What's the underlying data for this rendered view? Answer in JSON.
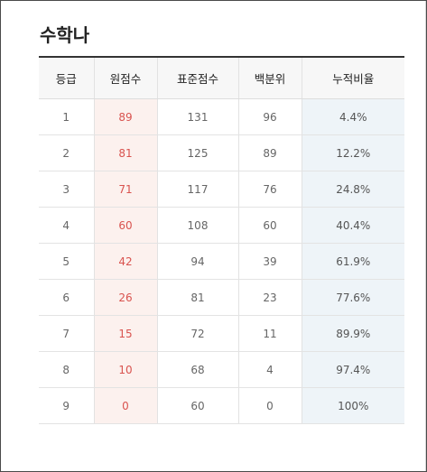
{
  "title": "수학나",
  "table": {
    "headers": [
      "등급",
      "원점수",
      "표준점수",
      "백분위",
      "누적비율"
    ],
    "rows": [
      [
        "1",
        "89",
        "131",
        "96",
        "4.4%"
      ],
      [
        "2",
        "81",
        "125",
        "89",
        "12.2%"
      ],
      [
        "3",
        "71",
        "117",
        "76",
        "24.8%"
      ],
      [
        "4",
        "60",
        "108",
        "60",
        "40.4%"
      ],
      [
        "5",
        "42",
        "94",
        "39",
        "61.9%"
      ],
      [
        "6",
        "26",
        "81",
        "23",
        "77.6%"
      ],
      [
        "7",
        "15",
        "72",
        "11",
        "89.9%"
      ],
      [
        "8",
        "10",
        "68",
        "4",
        "97.4%"
      ],
      [
        "9",
        "0",
        "60",
        "0",
        "100%"
      ]
    ]
  },
  "colors": {
    "raw_score_text": "#d9534f",
    "raw_score_bg": "#fcf1ee",
    "cumulative_bg": "#eef4f8",
    "header_border": "#333333"
  }
}
